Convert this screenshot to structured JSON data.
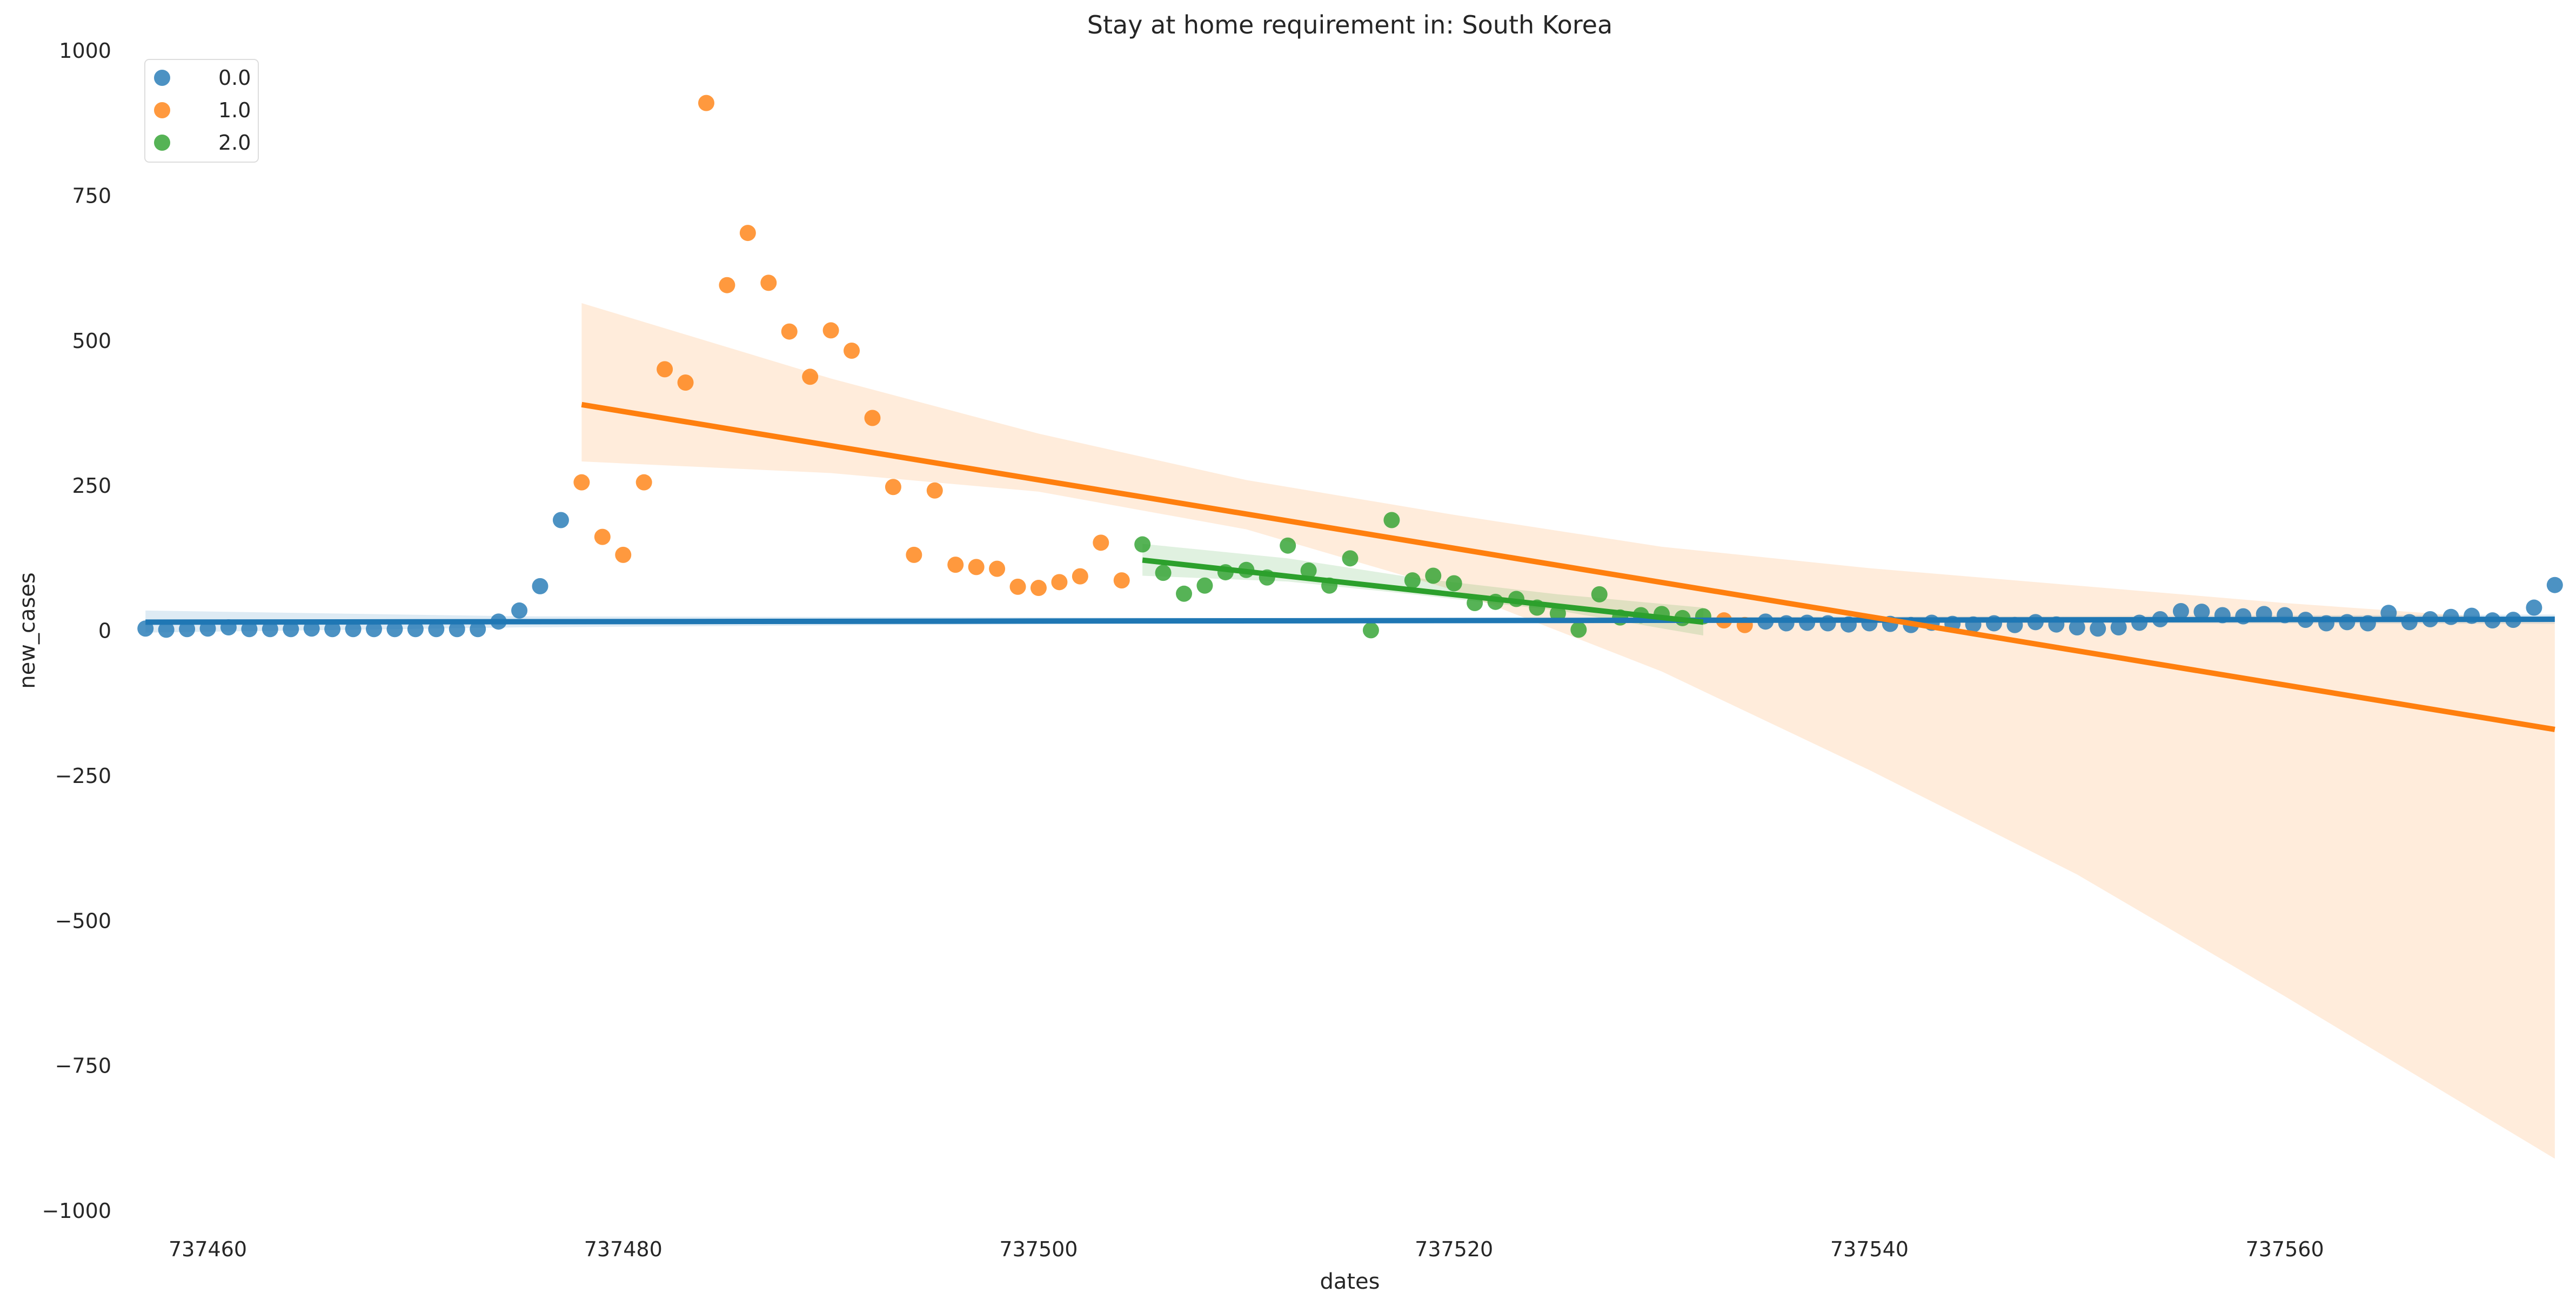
{
  "chart_data": {
    "type": "scatter",
    "title": "Stay at home requirement in: South Korea",
    "xlabel": "dates",
    "ylabel": "new_cases",
    "xlim": [
      737456.5,
      737573.5
    ],
    "ylim": [
      -1000,
      1000
    ],
    "xticks": [
      737460,
      737480,
      737500,
      737520,
      737540,
      737560
    ],
    "yticks": [
      1000,
      750,
      500,
      250,
      0,
      -250,
      -500,
      -750,
      -1000
    ],
    "xtick_labels": [
      "737460",
      "737480",
      "737500",
      "737520",
      "737540",
      "737560"
    ],
    "ytick_labels": [
      "1000",
      "750",
      "500",
      "250",
      "0",
      "−250",
      "−500",
      "−750",
      "−1000"
    ],
    "grid": false,
    "legend_position": "top-left",
    "series": [
      {
        "name": "0.0",
        "color": "#1f77b4",
        "points": [
          [
            737457,
            4
          ],
          [
            737458,
            2
          ],
          [
            737459,
            3
          ],
          [
            737460,
            4
          ],
          [
            737461,
            6
          ],
          [
            737462,
            3
          ],
          [
            737463,
            3
          ],
          [
            737464,
            3
          ],
          [
            737465,
            4
          ],
          [
            737466,
            3
          ],
          [
            737467,
            3
          ],
          [
            737468,
            3
          ],
          [
            737469,
            3
          ],
          [
            737470,
            3
          ],
          [
            737471,
            3
          ],
          [
            737472,
            3
          ],
          [
            737473,
            3
          ],
          [
            737474,
            16
          ],
          [
            737475,
            35
          ],
          [
            737476,
            77
          ],
          [
            737477,
            191
          ],
          [
            737535,
            16
          ],
          [
            737536,
            13
          ],
          [
            737537,
            14
          ],
          [
            737538,
            13
          ],
          [
            737539,
            11
          ],
          [
            737540,
            13
          ],
          [
            737541,
            12
          ],
          [
            737542,
            10
          ],
          [
            737543,
            14
          ],
          [
            737544,
            12
          ],
          [
            737545,
            11
          ],
          [
            737546,
            13
          ],
          [
            737547,
            10
          ],
          [
            737548,
            15
          ],
          [
            737549,
            11
          ],
          [
            737550,
            6
          ],
          [
            737551,
            4
          ],
          [
            737552,
            6
          ],
          [
            737553,
            14
          ],
          [
            737554,
            20
          ],
          [
            737555,
            34
          ],
          [
            737556,
            33
          ],
          [
            737557,
            27
          ],
          [
            737558,
            25
          ],
          [
            737559,
            29
          ],
          [
            737560,
            27
          ],
          [
            737561,
            19
          ],
          [
            737562,
            13
          ],
          [
            737563,
            15
          ],
          [
            737564,
            13
          ],
          [
            737565,
            31
          ],
          [
            737566,
            15
          ],
          [
            737567,
            20
          ],
          [
            737568,
            24
          ],
          [
            737569,
            26
          ],
          [
            737570,
            18
          ],
          [
            737571,
            19
          ],
          [
            737572,
            40
          ],
          [
            737573,
            79
          ]
        ],
        "fit": [
          [
            737457,
            15
          ],
          [
            737573,
            20
          ]
        ],
        "ci_upper": [
          [
            737457,
            35
          ],
          [
            737475,
            25
          ],
          [
            737515,
            22
          ],
          [
            737573,
            28
          ]
        ],
        "ci_lower": [
          [
            737457,
            -3
          ],
          [
            737475,
            6
          ],
          [
            737515,
            15
          ],
          [
            737573,
            12
          ]
        ]
      },
      {
        "name": "1.0",
        "color": "#ff7f0e",
        "points": [
          [
            737478,
            256
          ],
          [
            737479,
            162
          ],
          [
            737480,
            131
          ],
          [
            737481,
            256
          ],
          [
            737482,
            451
          ],
          [
            737483,
            428
          ],
          [
            737484,
            910
          ],
          [
            737485,
            596
          ],
          [
            737486,
            686
          ],
          [
            737487,
            600
          ],
          [
            737488,
            516
          ],
          [
            737489,
            438
          ],
          [
            737490,
            518
          ],
          [
            737491,
            483
          ],
          [
            737492,
            367
          ],
          [
            737493,
            248
          ],
          [
            737494,
            131
          ],
          [
            737495,
            242
          ],
          [
            737496,
            114
          ],
          [
            737497,
            110
          ],
          [
            737498,
            107
          ],
          [
            737499,
            76
          ],
          [
            737500,
            74
          ],
          [
            737501,
            84
          ],
          [
            737502,
            94
          ],
          [
            737503,
            152
          ],
          [
            737504,
            87
          ],
          [
            737533,
            18
          ],
          [
            737534,
            10
          ]
        ],
        "fit": [
          [
            737478,
            390
          ],
          [
            737573,
            -170
          ]
        ],
        "ci_upper": [
          [
            737478,
            565
          ],
          [
            737490,
            435
          ],
          [
            737500,
            340
          ],
          [
            737510,
            260
          ],
          [
            737520,
            200
          ],
          [
            737530,
            145
          ],
          [
            737540,
            108
          ],
          [
            737550,
            78
          ],
          [
            737560,
            48
          ],
          [
            737573,
            15
          ]
        ],
        "ci_lower": [
          [
            737478,
            292
          ],
          [
            737490,
            272
          ],
          [
            737500,
            240
          ],
          [
            737510,
            175
          ],
          [
            737520,
            70
          ],
          [
            737530,
            -70
          ],
          [
            737540,
            -240
          ],
          [
            737550,
            -420
          ],
          [
            737560,
            -630
          ],
          [
            737573,
            -910
          ]
        ]
      },
      {
        "name": "2.0",
        "color": "#2ca02c",
        "points": [
          [
            737505,
            149
          ],
          [
            737506,
            100
          ],
          [
            737507,
            64
          ],
          [
            737508,
            78
          ],
          [
            737509,
            101
          ],
          [
            737510,
            105
          ],
          [
            737511,
            92
          ],
          [
            737512,
            147
          ],
          [
            737513,
            104
          ],
          [
            737514,
            78
          ],
          [
            737515,
            125
          ],
          [
            737516,
            1
          ],
          [
            737517,
            191
          ],
          [
            737518,
            87
          ],
          [
            737519,
            95
          ],
          [
            737520,
            82
          ],
          [
            737521,
            48
          ],
          [
            737522,
            50
          ],
          [
            737523,
            55
          ],
          [
            737524,
            40
          ],
          [
            737525,
            30
          ],
          [
            737526,
            2
          ],
          [
            737527,
            63
          ],
          [
            737528,
            23
          ],
          [
            737529,
            27
          ],
          [
            737530,
            29
          ],
          [
            737531,
            22
          ],
          [
            737532,
            25
          ]
        ],
        "fit": [
          [
            737505,
            122
          ],
          [
            737532,
            15
          ]
        ],
        "ci_upper": [
          [
            737505,
            150
          ],
          [
            737512,
            125
          ],
          [
            737518,
            92
          ],
          [
            737525,
            63
          ],
          [
            737532,
            40
          ]
        ],
        "ci_lower": [
          [
            737505,
            95
          ],
          [
            737512,
            85
          ],
          [
            737518,
            63
          ],
          [
            737525,
            35
          ],
          [
            737532,
            -8
          ]
        ]
      }
    ]
  }
}
